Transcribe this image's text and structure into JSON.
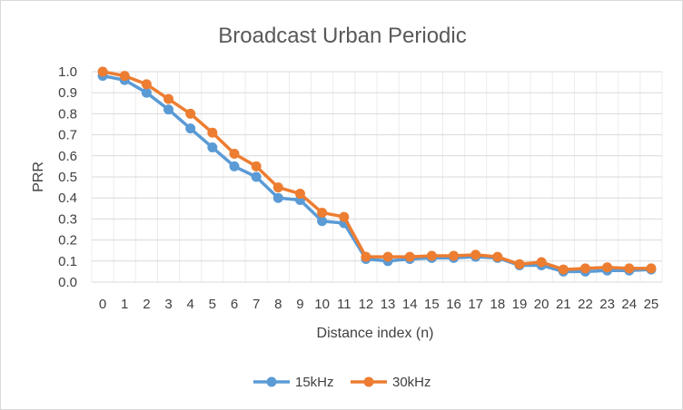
{
  "chart_data": {
    "type": "line",
    "title": "Broadcast Urban Periodic",
    "xlabel": "Distance index (n)",
    "ylabel": "PRR",
    "x": [
      0,
      1,
      2,
      3,
      4,
      5,
      6,
      7,
      8,
      9,
      10,
      11,
      12,
      13,
      14,
      15,
      16,
      17,
      18,
      19,
      20,
      21,
      22,
      23,
      24,
      25
    ],
    "xticks": [
      "0",
      "1",
      "2",
      "3",
      "4",
      "5",
      "6",
      "7",
      "8",
      "9",
      "10",
      "11",
      "12",
      "13",
      "14",
      "15",
      "16",
      "17",
      "18",
      "19",
      "20",
      "21",
      "22",
      "23",
      "24",
      "25"
    ],
    "ylim": [
      0,
      1.0
    ],
    "yticks": [
      "0.0",
      "0.1",
      "0.2",
      "0.3",
      "0.4",
      "0.5",
      "0.6",
      "0.7",
      "0.8",
      "0.9",
      "1.0"
    ],
    "grid": true,
    "legend": "bottom",
    "series": [
      {
        "name": "15kHz",
        "color": "#5B9BD5",
        "values": [
          0.98,
          0.96,
          0.9,
          0.82,
          0.73,
          0.64,
          0.55,
          0.5,
          0.4,
          0.39,
          0.29,
          0.28,
          0.11,
          0.1,
          0.11,
          0.115,
          0.115,
          0.12,
          0.115,
          0.08,
          0.08,
          0.05,
          0.05,
          0.055,
          0.055,
          0.06
        ]
      },
      {
        "name": "30kHz",
        "color": "#ED7D31",
        "values": [
          1.0,
          0.98,
          0.94,
          0.87,
          0.8,
          0.71,
          0.61,
          0.55,
          0.45,
          0.42,
          0.33,
          0.31,
          0.12,
          0.12,
          0.12,
          0.125,
          0.125,
          0.13,
          0.12,
          0.085,
          0.095,
          0.06,
          0.065,
          0.07,
          0.065,
          0.065
        ]
      }
    ]
  }
}
